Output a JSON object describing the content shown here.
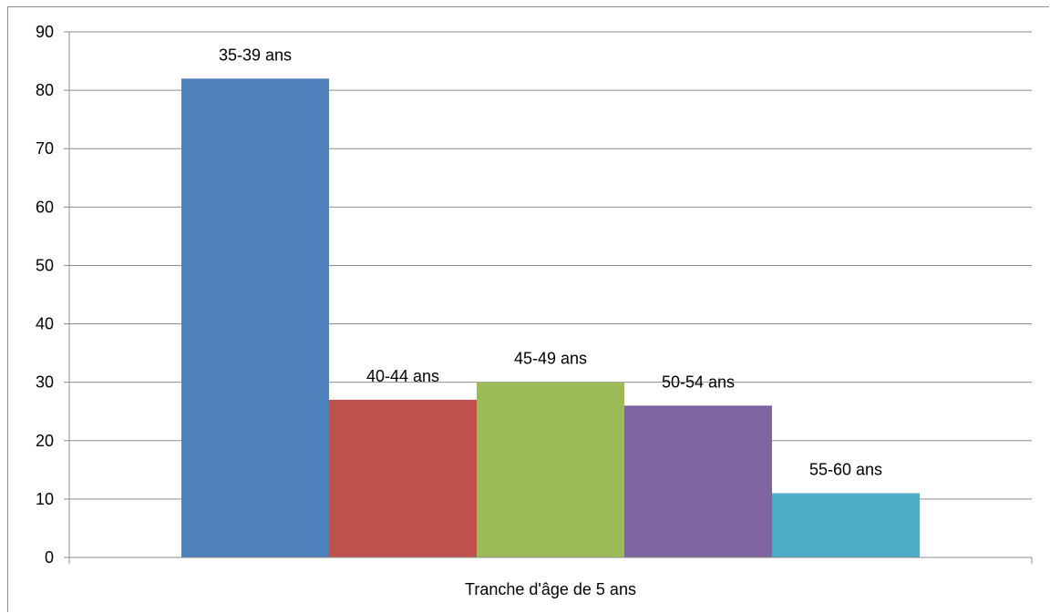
{
  "chart_data": {
    "type": "bar",
    "xlabel": "Tranche d'âge de 5 ans",
    "ylabel": "",
    "ylim": [
      0,
      90
    ],
    "yticks": [
      "0",
      "10",
      "20",
      "30",
      "40",
      "50",
      "60",
      "70",
      "80",
      "90"
    ],
    "grid": true,
    "legend": "none",
    "series": [
      {
        "name": "35-39 ans",
        "value": 82,
        "color": "#4f81bd"
      },
      {
        "name": "40-44 ans",
        "value": 27,
        "color": "#c0504d"
      },
      {
        "name": "45-49 ans",
        "value": 30,
        "color": "#9bbb59"
      },
      {
        "name": "50-54 ans",
        "value": 26,
        "color": "#8064a2"
      },
      {
        "name": "55-60 ans",
        "value": 11,
        "color": "#4bacc6"
      }
    ]
  }
}
